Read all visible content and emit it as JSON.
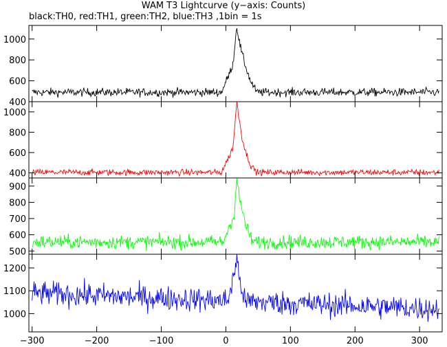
{
  "title": "WAM T3 Lightcurve (y−axis: Counts)",
  "subtitle": "black:TH0, red:TH1, green:TH2, blue:TH3 ,1bin = 1s",
  "chart_data": [
    {
      "type": "line",
      "name": "TH0",
      "color": "#000000",
      "xlim": [
        -305,
        335
      ],
      "ylim": [
        400,
        1130
      ],
      "yticks": [
        400,
        600,
        800,
        1000
      ],
      "baseline": 490,
      "noise": 28,
      "peaks": [
        {
          "x": 5,
          "y": 660
        },
        {
          "x": 11,
          "y": 760
        },
        {
          "x": 17,
          "y": 1130
        },
        {
          "x": 20,
          "y": 1000
        },
        {
          "x": 25,
          "y": 860
        },
        {
          "x": 30,
          "y": 750
        },
        {
          "x": 38,
          "y": 600
        }
      ]
    },
    {
      "type": "line",
      "name": "TH1",
      "color": "#ff0000",
      "xlim": [
        -305,
        335
      ],
      "ylim": [
        350,
        1100
      ],
      "yticks": [
        400,
        600,
        800,
        1000
      ],
      "baseline": 405,
      "noise": 22,
      "peaks": [
        {
          "x": 5,
          "y": 560
        },
        {
          "x": 11,
          "y": 650
        },
        {
          "x": 17,
          "y": 1100
        },
        {
          "x": 20,
          "y": 960
        },
        {
          "x": 25,
          "y": 750
        },
        {
          "x": 30,
          "y": 620
        },
        {
          "x": 38,
          "y": 480
        }
      ]
    },
    {
      "type": "line",
      "name": "TH2",
      "color": "#00ff00",
      "xlim": [
        -305,
        335
      ],
      "ylim": [
        480,
        950
      ],
      "yticks": [
        500,
        600,
        700,
        800,
        900
      ],
      "baseline": 555,
      "noise": 30,
      "peaks": [
        {
          "x": 8,
          "y": 680
        },
        {
          "x": 13,
          "y": 720
        },
        {
          "x": 17,
          "y": 950
        },
        {
          "x": 21,
          "y": 820
        },
        {
          "x": 25,
          "y": 760
        },
        {
          "x": 32,
          "y": 640
        }
      ]
    },
    {
      "type": "line",
      "name": "TH3",
      "color": "#0000ff",
      "xlim": [
        -305,
        335
      ],
      "ylim": [
        920,
        1260
      ],
      "yticks": [
        1000,
        1100,
        1200
      ],
      "baseline_start": 1090,
      "baseline_end": 1020,
      "noise": 38,
      "peaks": [
        {
          "x": 15,
          "y": 1200
        },
        {
          "x": 17,
          "y": 1260
        },
        {
          "x": 19,
          "y": 1190
        }
      ]
    }
  ],
  "xaxis": {
    "range": [
      -305,
      335
    ],
    "ticks": [
      -300,
      -200,
      -100,
      0,
      100,
      200,
      300
    ]
  }
}
